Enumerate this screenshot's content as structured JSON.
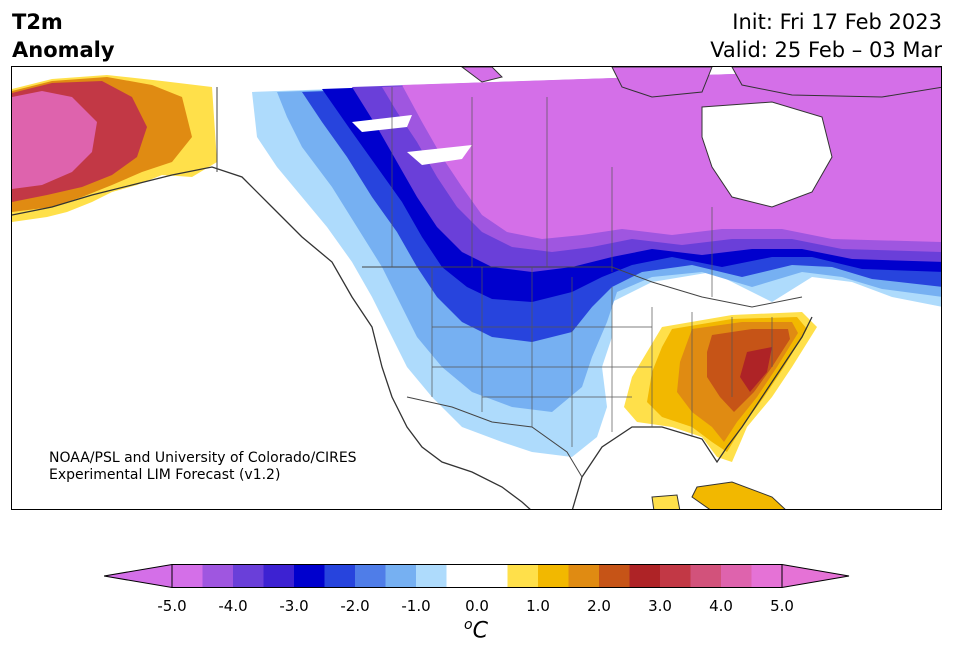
{
  "header": {
    "title_line1": "T2m",
    "title_line2": "Anomaly",
    "init": "Init: Fri 17 Feb 2023",
    "valid": "Valid: 25 Feb – 03 Mar"
  },
  "credit": {
    "line1": "NOAA/PSL and University of Colorado/CIRES",
    "line2": "Experimental LIM Forecast (v1.2)"
  },
  "colorbar": {
    "unit_base": "C",
    "unit_sup": "o",
    "tick_labels": [
      "-5.0",
      "-4.0",
      "-3.0",
      "-2.0",
      "-1.0",
      "0.0",
      "1.0",
      "2.0",
      "3.0",
      "4.0",
      "5.0"
    ],
    "colors": [
      "#d46fe8",
      "#9f56e0",
      "#6a3fd9",
      "#3d22d2",
      "#0000cd",
      "#2744dd",
      "#4f7de8",
      "#76b0f2",
      "#aedbfc",
      "#ffffff",
      "#ffffff",
      "#ffe04a",
      "#f2b800",
      "#e08b12",
      "#c65417",
      "#ae2326",
      "#c23845",
      "#d2527b",
      "#de63ad",
      "#e572d6"
    ],
    "under_color": "#d46fe8",
    "over_color": "#e572d6"
  }
}
